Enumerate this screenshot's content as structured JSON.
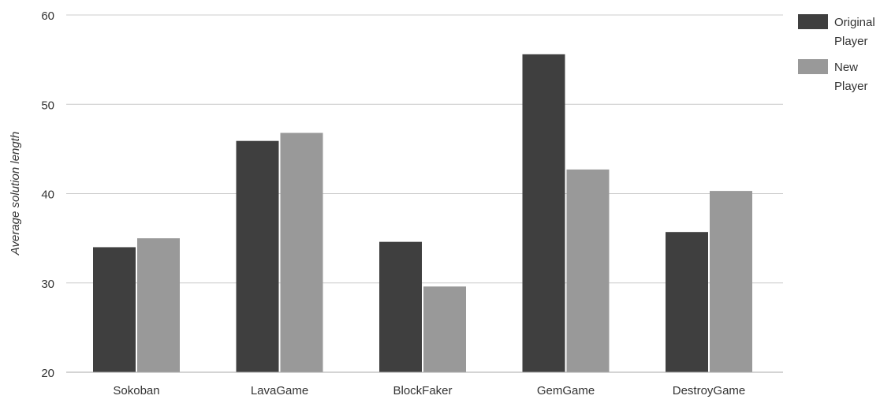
{
  "chart_data": {
    "type": "bar",
    "title": "",
    "xlabel": "",
    "ylabel": "Average solution length",
    "ylim": [
      20,
      60
    ],
    "yticks": [
      20,
      30,
      40,
      50,
      60
    ],
    "grid": true,
    "legend_position": "top-right",
    "categories": [
      "Sokoban",
      "LavaGame",
      "BlockFaker",
      "GemGame",
      "DestroyGame"
    ],
    "series": [
      {
        "name": "Original Player",
        "legend_lines": [
          "Original",
          "Player"
        ],
        "color": "#3f3f3f",
        "values": [
          34.0,
          45.9,
          34.6,
          55.6,
          35.7
        ]
      },
      {
        "name": "New Player",
        "legend_lines": [
          "New",
          "Player"
        ],
        "color": "#999999",
        "values": [
          35.0,
          46.8,
          29.6,
          42.7,
          40.3
        ]
      }
    ]
  },
  "colors": {
    "grid": "#cccccc",
    "axis": "#aaaaaa",
    "text": "#333333"
  }
}
